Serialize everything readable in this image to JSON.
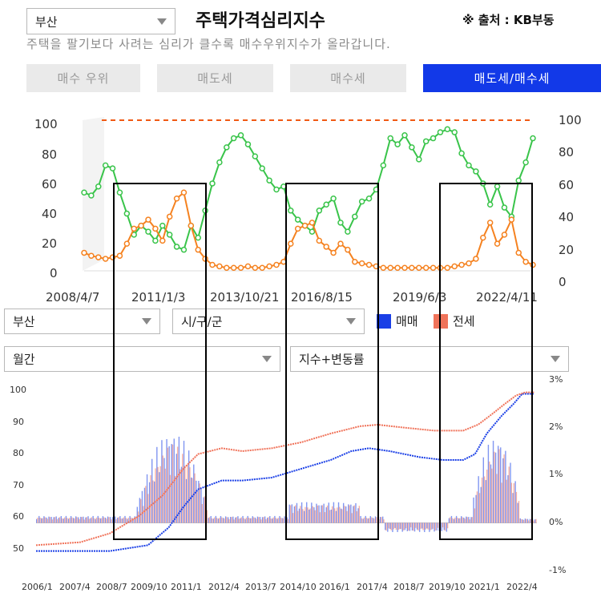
{
  "header": {
    "region": "부산",
    "title": "주택가격심리지수",
    "source": "※ 출처 : KB부동",
    "subtitle": "주택을 팔기보다 사려는 심리가 클수록 매수우위지수가 올라갑니다."
  },
  "tabs": [
    {
      "label": "매수 우위",
      "active": false
    },
    {
      "label": "매도세",
      "active": false
    },
    {
      "label": "매수세",
      "active": false
    },
    {
      "label": "매도세/매수세",
      "active": true
    }
  ],
  "colors": {
    "buy_line": "#39c44a",
    "sell_line": "#f58220",
    "accent": "#1239e8",
    "dashed": "#f05a14"
  },
  "chart_top": {
    "type": "line",
    "ylim": [
      0,
      100
    ],
    "y_ticks_left": [
      "100",
      "80",
      "60",
      "40",
      "20",
      "0"
    ],
    "y_ticks_right": [
      "100",
      "80",
      "60",
      "40",
      "20",
      "0"
    ],
    "x_ticks": [
      "2008/4/7",
      "2011/1/3",
      "2013/10/21",
      "2016/8/15",
      "2019/6/3",
      "2022/4/11"
    ],
    "series": [
      {
        "name": "매수세",
        "color": "#39c44a",
        "values": [
          52,
          50,
          56,
          70,
          68,
          52,
          38,
          24,
          30,
          26,
          20,
          30,
          24,
          16,
          14,
          30,
          22,
          40,
          58,
          72,
          82,
          88,
          90,
          84,
          76,
          68,
          60,
          54,
          56,
          40,
          34,
          30,
          26,
          40,
          44,
          48,
          32,
          26,
          36,
          46,
          48,
          54,
          70,
          88,
          84,
          90,
          82,
          74,
          86,
          88,
          92,
          94,
          92,
          78,
          70,
          66,
          58,
          44,
          56,
          42,
          36,
          60,
          72,
          88
        ]
      },
      {
        "name": "매도세",
        "color": "#f58220",
        "values": [
          12,
          10,
          9,
          8,
          9,
          10,
          18,
          28,
          30,
          34,
          28,
          20,
          36,
          48,
          52,
          30,
          14,
          8,
          4,
          3,
          2,
          2,
          2,
          3,
          2,
          2,
          3,
          4,
          6,
          18,
          28,
          30,
          32,
          20,
          16,
          12,
          18,
          14,
          6,
          5,
          4,
          3,
          2,
          2,
          2,
          2,
          2,
          2,
          2,
          2,
          2,
          2,
          3,
          4,
          5,
          8,
          22,
          32,
          18,
          24,
          34,
          12,
          6,
          4
        ]
      }
    ],
    "reference_line": 100
  },
  "controls": {
    "region": "부산",
    "district": "시/구/군",
    "period": "월간",
    "mode": "지수+변동률",
    "legend": [
      {
        "label": "매매",
        "color": "#1a3fe6"
      },
      {
        "label": "전세",
        "color": "#f0735a"
      }
    ]
  },
  "chart_bottom": {
    "type": "bar",
    "ylim_left": [
      45,
      102
    ],
    "ylim_right": [
      -1,
      3
    ],
    "y_ticks_left": [
      "100",
      "90",
      "80",
      "70",
      "60",
      "50"
    ],
    "y_ticks_right": [
      "3%",
      "2%",
      "1%",
      "0%",
      "-1%"
    ],
    "x_ticks": [
      "2006/1",
      "2007/4",
      "2008/7",
      "2009/10",
      "2011/1",
      "2012/4",
      "2013/7",
      "2014/10",
      "2016/1",
      "2017/4",
      "2018/7",
      "2019/10",
      "2021/1",
      "2022/4"
    ],
    "series": [
      {
        "name": "매매",
        "kind": "index",
        "color": "#1a3fe6",
        "points": [
          [
            2006.0,
            47
          ],
          [
            2008.5,
            47
          ],
          [
            2009.8,
            49
          ],
          [
            2010.5,
            55
          ],
          [
            2011.0,
            62
          ],
          [
            2011.5,
            68
          ],
          [
            2012.3,
            71
          ],
          [
            2013.0,
            71
          ],
          [
            2014.0,
            72
          ],
          [
            2015.0,
            75
          ],
          [
            2016.0,
            78
          ],
          [
            2016.7,
            81
          ],
          [
            2017.3,
            82
          ],
          [
            2018.0,
            81
          ],
          [
            2019.0,
            79
          ],
          [
            2019.8,
            78
          ],
          [
            2020.5,
            78
          ],
          [
            2020.9,
            80
          ],
          [
            2021.3,
            87
          ],
          [
            2021.8,
            93
          ],
          [
            2022.2,
            97
          ],
          [
            2022.5,
            100.5
          ],
          [
            2022.9,
            100.5
          ]
        ]
      },
      {
        "name": "전세",
        "kind": "index",
        "color": "#f0735a",
        "points": [
          [
            2006.0,
            49
          ],
          [
            2007.5,
            50
          ],
          [
            2008.5,
            53
          ],
          [
            2009.5,
            59
          ],
          [
            2010.3,
            66
          ],
          [
            2011.0,
            75
          ],
          [
            2011.5,
            80
          ],
          [
            2012.3,
            82
          ],
          [
            2013.0,
            81
          ],
          [
            2014.0,
            82
          ],
          [
            2015.0,
            84
          ],
          [
            2016.0,
            87
          ],
          [
            2017.0,
            89.5
          ],
          [
            2017.6,
            90
          ],
          [
            2018.5,
            89
          ],
          [
            2019.5,
            88
          ],
          [
            2020.5,
            88
          ],
          [
            2021.0,
            90
          ],
          [
            2021.4,
            93
          ],
          [
            2021.9,
            97
          ],
          [
            2022.3,
            100
          ],
          [
            2022.6,
            101
          ],
          [
            2022.9,
            101
          ]
        ]
      }
    ]
  }
}
